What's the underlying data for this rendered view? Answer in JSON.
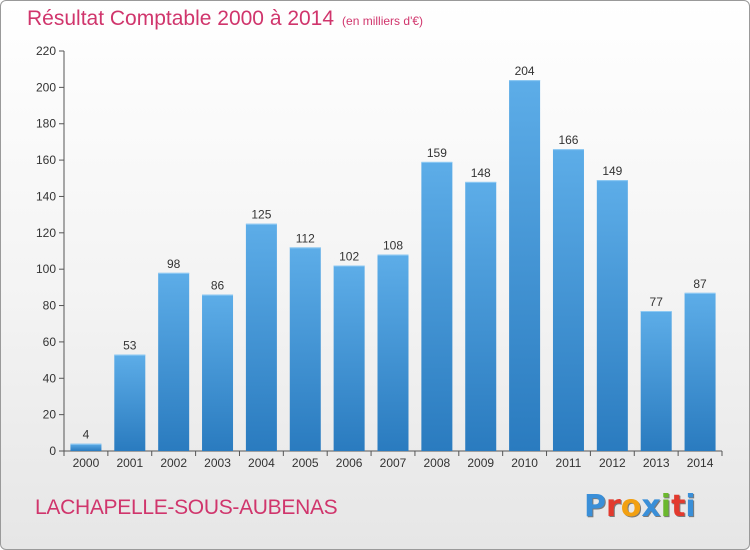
{
  "header": {
    "title": "Résultat Comptable 2000 à 2014",
    "unit": "(en milliers d'€)"
  },
  "footer": {
    "commune": "LACHAPELLE-SOUS-AUBENAS",
    "logo_letters": [
      "P",
      "r",
      "o",
      "x",
      "i",
      "t",
      "i"
    ]
  },
  "colors": {
    "title": "#d0356c",
    "bar_top": "#5dade8",
    "bar_bottom": "#2a7bbf",
    "logo": [
      "#3a8fd8",
      "#e23a2e",
      "#f2a012",
      "#3a8fd8",
      "#6bb82e",
      "#e23a2e",
      "#3a8fd8"
    ]
  },
  "chart_data": {
    "type": "bar",
    "categories": [
      "2000",
      "2001",
      "2002",
      "2003",
      "2004",
      "2005",
      "2006",
      "2007",
      "2008",
      "2009",
      "2010",
      "2011",
      "2012",
      "2013",
      "2014"
    ],
    "values": [
      4,
      53,
      98,
      86,
      125,
      112,
      102,
      108,
      159,
      148,
      204,
      166,
      149,
      77,
      87
    ],
    "ylim": [
      0,
      220
    ],
    "yticks": [
      0,
      20,
      40,
      60,
      80,
      100,
      120,
      140,
      160,
      180,
      200,
      220
    ],
    "grid": false,
    "data_labels": true
  }
}
